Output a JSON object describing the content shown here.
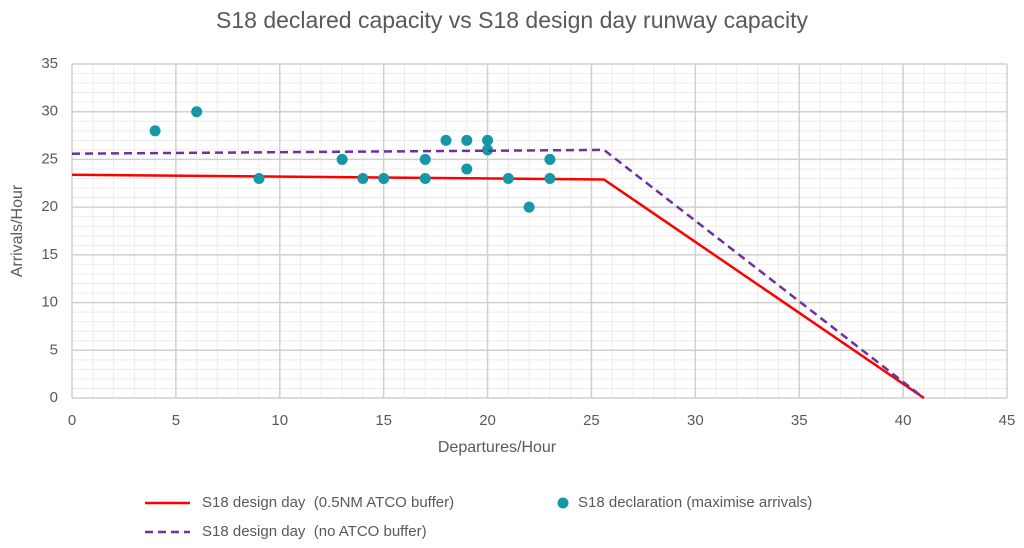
{
  "chart_data": {
    "type": "line",
    "title": "S18 declared capacity vs S18 design day runway capacity",
    "xlabel": "Departures/Hour",
    "ylabel": "Arrivals/Hour",
    "xlim": [
      0,
      45
    ],
    "xticks": [
      0,
      5,
      10,
      15,
      20,
      25,
      30,
      35,
      40,
      45
    ],
    "ylim": [
      0,
      35
    ],
    "yticks": [
      0,
      5,
      10,
      15,
      20,
      25,
      30,
      35
    ],
    "grid": true,
    "minor_grid": true,
    "legend": "bottom",
    "series": [
      {
        "name": "S18 design day  (0.5NM ATCO buffer)",
        "type": "line",
        "color": "#ff0000",
        "dashed": false,
        "x": [
          0,
          25.6,
          41
        ],
        "values": [
          23.4,
          22.9,
          0
        ]
      },
      {
        "name": "S18 declaration (maximise arrivals)",
        "type": "scatter",
        "color": "#1597a5",
        "x": [
          4,
          6,
          9,
          13,
          14,
          15,
          17,
          17,
          18,
          19,
          19,
          20,
          20,
          21,
          22,
          23,
          23
        ],
        "values": [
          28,
          30,
          23,
          25,
          23,
          23,
          25,
          23,
          27,
          27,
          24,
          27,
          26,
          23,
          20,
          25,
          23
        ]
      },
      {
        "name": "S18 design day  (no ATCO buffer)",
        "type": "line",
        "color": "#7030a0",
        "dashed": true,
        "x": [
          0,
          25.6,
          41
        ],
        "values": [
          25.6,
          26,
          0
        ]
      }
    ]
  }
}
